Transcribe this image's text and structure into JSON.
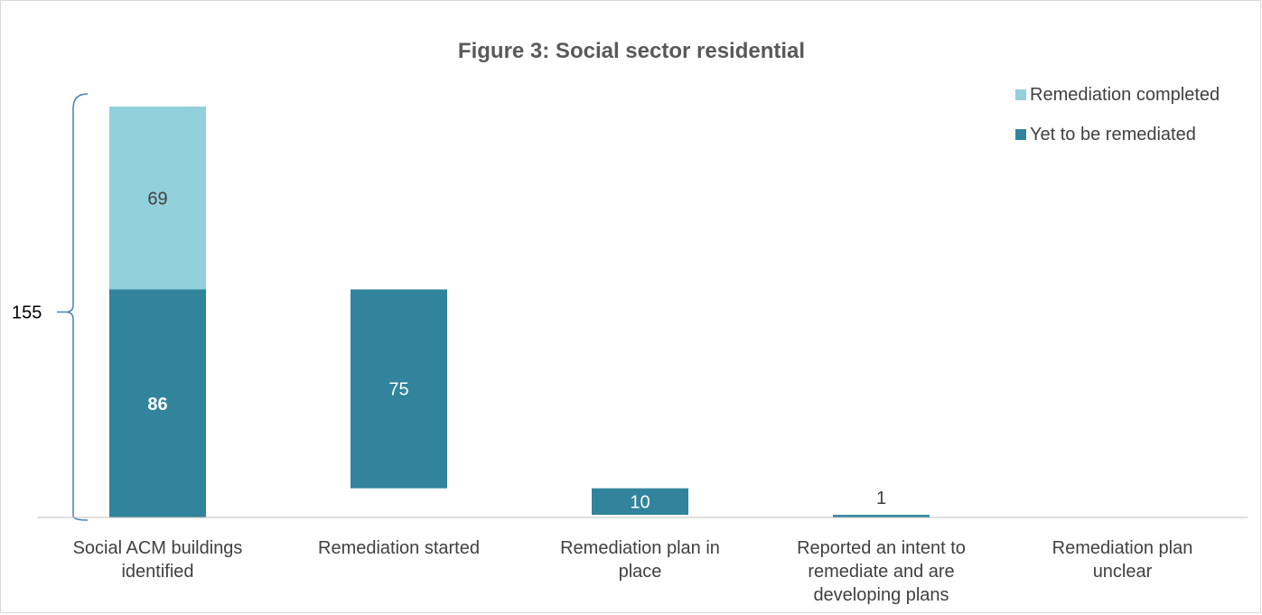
{
  "chart_data": {
    "type": "bar",
    "subtype": "stacked-waterfall",
    "title": "Figure 3: Social sector residential",
    "categories": [
      [
        "Social ACM buildings",
        "identified"
      ],
      [
        "Remediation started"
      ],
      [
        "Remediation plan in",
        "place"
      ],
      [
        "Reported an intent to",
        "remediate and are",
        "developing plans"
      ],
      [
        "Remediation plan",
        "unclear"
      ]
    ],
    "series": [
      {
        "name": "Remediation completed",
        "color": "#92d0db",
        "values": [
          69,
          null,
          null,
          null,
          null
        ]
      },
      {
        "name": "Yet to be remediated",
        "color": "#31849b",
        "values": [
          86,
          75,
          10,
          1,
          0
        ]
      }
    ],
    "data_labels": [
      {
        "category": 0,
        "series": 0,
        "text": "69",
        "style": "dark"
      },
      {
        "category": 0,
        "series": 1,
        "text": "86",
        "style": "light-bold"
      },
      {
        "category": 1,
        "series": 1,
        "text": "75",
        "style": "light"
      },
      {
        "category": 2,
        "series": 1,
        "text": "10",
        "style": "light"
      },
      {
        "category": 3,
        "series": 1,
        "text": "1",
        "style": "dark-above"
      }
    ],
    "bracket": {
      "label": "155",
      "total": 155
    },
    "ylim": [
      0,
      155
    ],
    "grid": false,
    "legend_position": "top-right"
  }
}
